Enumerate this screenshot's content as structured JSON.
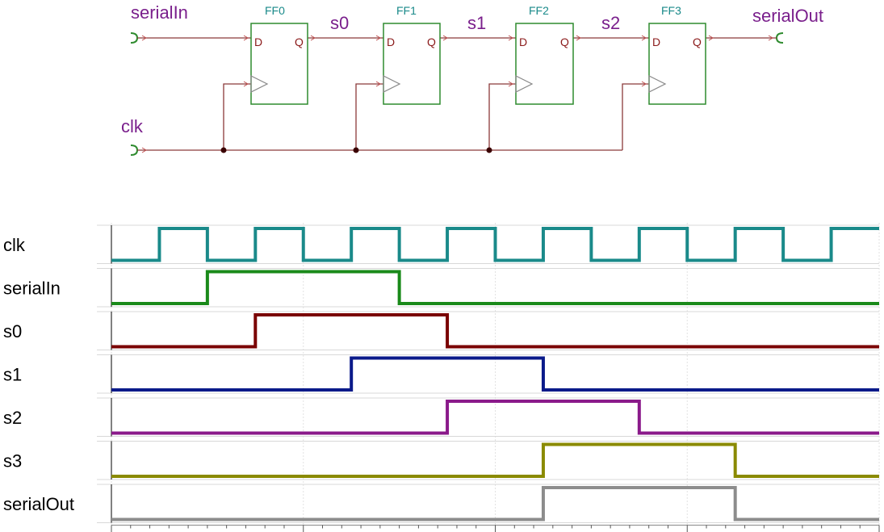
{
  "schematic": {
    "inputs": [
      {
        "key": "serialIn",
        "label": "serialIn"
      },
      {
        "key": "clk",
        "label": "clk"
      }
    ],
    "output": {
      "label": "serialOut"
    },
    "flipflops": [
      {
        "title": "FF0",
        "d_pin": "D",
        "q_pin": "Q"
      },
      {
        "title": "FF1",
        "d_pin": "D",
        "q_pin": "Q"
      },
      {
        "title": "FF2",
        "d_pin": "D",
        "q_pin": "Q"
      },
      {
        "title": "FF3",
        "d_pin": "D",
        "q_pin": "Q"
      }
    ],
    "nets": [
      "s0",
      "s1",
      "s2"
    ],
    "colors": {
      "wire": "#8b3a3a",
      "ff_border": "#2e8b2e",
      "port": "#2e8b2e",
      "junction": "#3a0000"
    }
  },
  "waveform": {
    "time_steps": 16,
    "signals": [
      {
        "name": "clk",
        "color": "#1a8a8a",
        "levels": [
          0,
          1,
          0,
          1,
          0,
          1,
          0,
          1,
          0,
          1,
          0,
          1,
          0,
          1,
          0,
          1
        ]
      },
      {
        "name": "serialIn",
        "color": "#1a8a1a",
        "levels": [
          0,
          0,
          1,
          1,
          1,
          1,
          0,
          0,
          0,
          0,
          0,
          0,
          0,
          0,
          0,
          0
        ]
      },
      {
        "name": "s0",
        "color": "#7a0000",
        "levels": [
          0,
          0,
          0,
          1,
          1,
          1,
          1,
          0,
          0,
          0,
          0,
          0,
          0,
          0,
          0,
          0
        ]
      },
      {
        "name": "s1",
        "color": "#0a1a8a",
        "levels": [
          0,
          0,
          0,
          0,
          0,
          1,
          1,
          1,
          1,
          0,
          0,
          0,
          0,
          0,
          0,
          0
        ]
      },
      {
        "name": "s2",
        "color": "#8a1a8a",
        "levels": [
          0,
          0,
          0,
          0,
          0,
          0,
          0,
          1,
          1,
          1,
          1,
          0,
          0,
          0,
          0,
          0
        ]
      },
      {
        "name": "s3",
        "color": "#8a8a00",
        "levels": [
          0,
          0,
          0,
          0,
          0,
          0,
          0,
          0,
          0,
          1,
          1,
          1,
          1,
          0,
          0,
          0
        ]
      },
      {
        "name": "serialOut",
        "color": "#8c8c8c",
        "levels": [
          0,
          0,
          0,
          0,
          0,
          0,
          0,
          0,
          0,
          1,
          1,
          1,
          1,
          0,
          0,
          0
        ]
      }
    ]
  }
}
